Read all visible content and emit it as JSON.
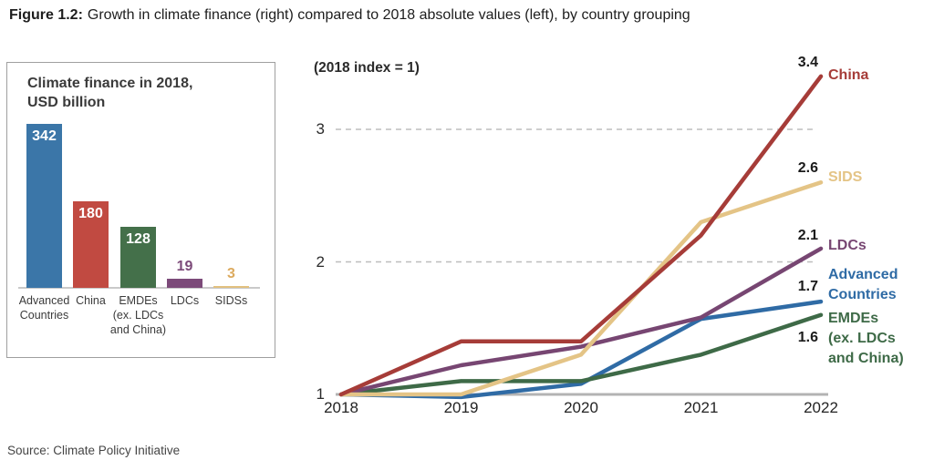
{
  "figure_title": {
    "label": "Figure 1.2:",
    "text": "Growth in climate finance (right) compared to 2018 absolute values (left), by country grouping"
  },
  "source": "Source: Climate Policy Initiative",
  "chart_data": [
    {
      "type": "bar",
      "title_lines": [
        "Climate finance in 2018,",
        "USD billion"
      ],
      "categories": [
        "Advanced Countries",
        "China",
        "EMDEs (ex. LDCs and China)",
        "LDCs",
        "SIDSs"
      ],
      "category_label_lines": [
        [
          "Advanced",
          "Countries"
        ],
        [
          "China"
        ],
        [
          "EMDEs",
          "(ex. LDCs",
          "and China)"
        ],
        [
          "LDCs"
        ],
        [
          "SIDSs"
        ]
      ],
      "values": [
        342,
        180,
        128,
        19,
        3
      ],
      "bar_colors": [
        "#3b76a8",
        "#c14a41",
        "#44704a",
        "#7c4a79",
        "#e2c07f"
      ],
      "value_label_colors": [
        "#ffffff",
        "#ffffff",
        "#ffffff",
        "#7c4a79",
        "#dcaa5e"
      ],
      "ylim": [
        0,
        360
      ]
    },
    {
      "type": "line",
      "subtitle": "(2018 index = 1)",
      "x": [
        "2018",
        "2019",
        "2020",
        "2021",
        "2022"
      ],
      "yticks": [
        "1",
        "2",
        "3"
      ],
      "ylim": [
        1,
        3.4
      ],
      "grid": "dashed horizontal lines at 2 and 3, solid gray baseline at 1",
      "series": [
        {
          "name": "China",
          "label_lines": [
            "China"
          ],
          "end_label": "3.4",
          "color": "#a63c38",
          "values": [
            1.0,
            1.4,
            1.4,
            2.2,
            3.4
          ]
        },
        {
          "name": "SIDS",
          "label_lines": [
            "SIDS"
          ],
          "end_label": "2.6",
          "color": "#e4c486",
          "values": [
            1.0,
            1.0,
            1.3,
            2.3,
            2.6
          ]
        },
        {
          "name": "LDCs",
          "label_lines": [
            "LDCs"
          ],
          "end_label": "2.1",
          "color": "#774672",
          "values": [
            1.0,
            1.22,
            1.36,
            1.58,
            2.1
          ]
        },
        {
          "name": "Advanced Countries",
          "label_lines": [
            "Advanced",
            "Countries"
          ],
          "end_label": "1.7",
          "color": "#2f6ba5",
          "values": [
            1.0,
            0.98,
            1.08,
            1.57,
            1.7
          ]
        },
        {
          "name": "EMDEs (ex. LDCs and China)",
          "label_lines": [
            "EMDEs",
            "(ex. LDCs",
            "and China)"
          ],
          "end_label": "1.6",
          "color": "#3e6a47",
          "values": [
            1.0,
            1.1,
            1.1,
            1.3,
            1.6
          ]
        }
      ]
    }
  ]
}
